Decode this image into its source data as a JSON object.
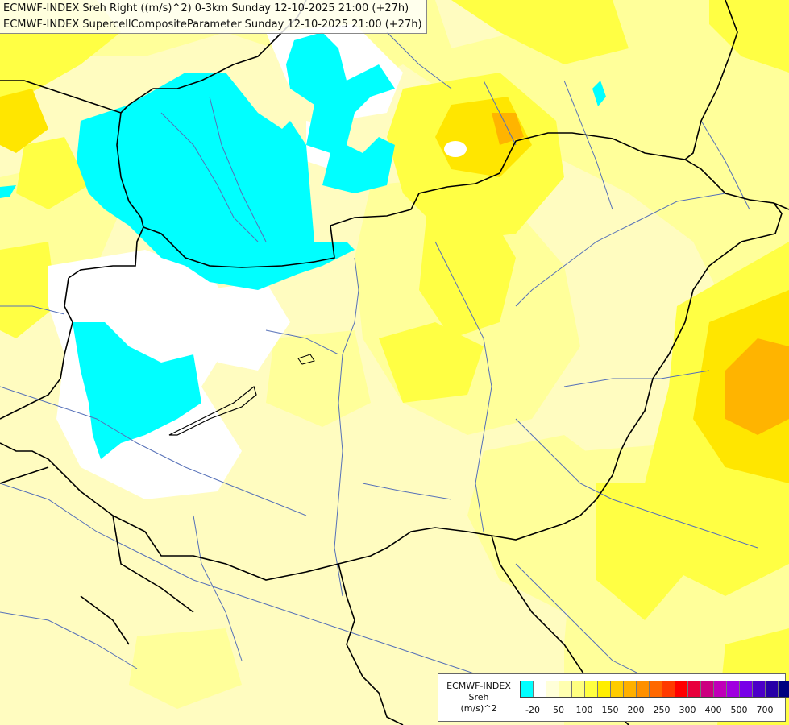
{
  "header": {
    "title_line_1": "ECMWF-INDEX Sreh Right ((m/s)^2) 0-3km Sunday 12-10-2025 21:00 (+27h)",
    "title_line_2": "ECMWF-INDEX SupercellCompositeParameter Sunday 12-10-2025 21:00 (+27h)"
  },
  "legend": {
    "caption_line_1": "ECMWF-INDEX",
    "caption_line_2": "Sreh",
    "caption_line_3": "(m/s)^2",
    "colors": [
      "#00ffff",
      "#ffffff",
      "#ffffd8",
      "#ffffb0",
      "#ffff80",
      "#ffff40",
      "#ffee00",
      "#ffcc00",
      "#ffb000",
      "#ff9000",
      "#ff6800",
      "#ff3a00",
      "#ff0000",
      "#e8003c",
      "#cc0080",
      "#c000b8",
      "#a000e0",
      "#7800e8",
      "#4c00c8",
      "#2800a8",
      "#000080"
    ],
    "tick_labels": [
      "-20",
      "50",
      "100",
      "150",
      "200",
      "250",
      "300",
      "400",
      "500",
      "700"
    ]
  },
  "map_layers": {
    "background_color": "#fffcc0",
    "light_yellow": "#ffff9a",
    "yellow": "#ffff44",
    "deep_yellow": "#ffe600",
    "orange": "#ffb400",
    "cyan": "#00ffff",
    "white": "#ffffff",
    "border_color": "#000000",
    "river_color": "#5570b8"
  }
}
